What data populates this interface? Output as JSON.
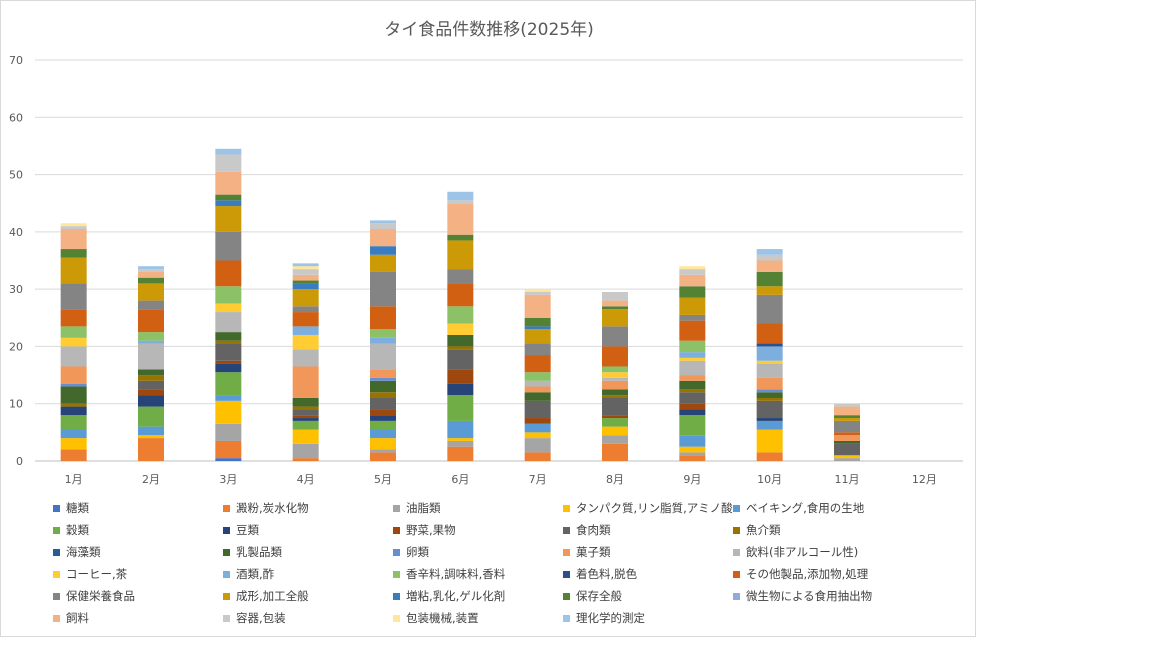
{
  "chart_data": {
    "type": "bar",
    "stacked": true,
    "title": "タイ食品件数推移(2025年)",
    "xlabel": "",
    "ylabel": "",
    "ylim": [
      0,
      70
    ],
    "yticks": [
      0,
      10,
      20,
      30,
      40,
      50,
      60,
      70
    ],
    "grid": true,
    "legend_position": "bottom",
    "categories": [
      "1月",
      "2月",
      "3月",
      "4月",
      "5月",
      "6月",
      "7月",
      "8月",
      "9月",
      "10月",
      "11月",
      "12月"
    ],
    "series": [
      {
        "name": "糖類",
        "color": "#4472c4",
        "values": [
          0,
          0,
          0.5,
          0,
          0,
          0,
          0,
          0,
          0,
          0,
          0,
          0
        ]
      },
      {
        "name": "澱粉,炭水化物",
        "color": "#ed7d31",
        "values": [
          2,
          4,
          3,
          0.5,
          1.5,
          2.5,
          1.5,
          3,
          1,
          1.5,
          0,
          0
        ]
      },
      {
        "name": "油脂類",
        "color": "#a5a5a5",
        "values": [
          0,
          0,
          3,
          2.5,
          0.5,
          1,
          2.5,
          1.5,
          0.5,
          0,
          0.5,
          0
        ]
      },
      {
        "name": "タンパク質,リン脂質,アミノ酸",
        "color": "#ffc000",
        "values": [
          2,
          0.5,
          4,
          2.5,
          2,
          0.5,
          1,
          1.5,
          1,
          4,
          0.5,
          0
        ]
      },
      {
        "name": "ベイキング,食用の生地",
        "color": "#5b9bd5",
        "values": [
          1.5,
          1.5,
          1,
          0,
          1.5,
          3,
          1.5,
          0,
          2,
          1.5,
          0,
          0
        ]
      },
      {
        "name": "穀類",
        "color": "#70ad47",
        "values": [
          2.5,
          3.5,
          4,
          1.5,
          1.5,
          4.5,
          0,
          1.5,
          3.5,
          0,
          0,
          0
        ]
      },
      {
        "name": "豆類",
        "color": "#264478",
        "values": [
          1.5,
          2,
          1.5,
          0.5,
          1,
          2,
          0,
          0,
          1,
          0.5,
          0,
          0
        ]
      },
      {
        "name": "野菜,果物",
        "color": "#9e480e",
        "values": [
          0,
          1,
          0.5,
          0.5,
          1,
          2.5,
          1,
          0.5,
          1,
          0,
          0,
          0
        ]
      },
      {
        "name": "食肉類",
        "color": "#636363",
        "values": [
          0,
          1.5,
          3,
          1,
          2,
          3.5,
          3,
          3,
          2,
          3,
          2,
          0
        ]
      },
      {
        "name": "魚介類",
        "color": "#997300",
        "values": [
          0.5,
          1,
          0.5,
          0.5,
          1,
          0.5,
          0,
          0.5,
          0.5,
          0.5,
          0,
          0
        ]
      },
      {
        "name": "海藻類",
        "color": "#255e91",
        "values": [
          0,
          0,
          0,
          0,
          0,
          0,
          0,
          0,
          0,
          0,
          0,
          0
        ]
      },
      {
        "name": "乳製品類",
        "color": "#43682b",
        "values": [
          3,
          1,
          1.5,
          1.5,
          2,
          2,
          1.5,
          1,
          1.5,
          1,
          0.5,
          0
        ]
      },
      {
        "name": "卵類",
        "color": "#698ed0",
        "values": [
          0.5,
          0,
          0,
          0,
          0.5,
          0,
          0,
          0,
          0,
          0.5,
          0,
          0
        ]
      },
      {
        "name": "菓子類",
        "color": "#f1975a",
        "values": [
          3,
          0,
          0,
          5.5,
          1.5,
          0,
          1,
          1.5,
          1,
          2,
          1,
          0
        ]
      },
      {
        "name": "飲料(非アルコール性)",
        "color": "#b7b7b7",
        "values": [
          3.5,
          4.5,
          3.5,
          3,
          4.5,
          0,
          1,
          0.5,
          2.5,
          2.5,
          0,
          0
        ]
      },
      {
        "name": "コーヒー,茶",
        "color": "#ffcd33",
        "values": [
          1.5,
          0,
          1.5,
          2.5,
          0,
          2,
          0,
          1,
          0.5,
          0.5,
          0,
          0
        ]
      },
      {
        "name": "酒類,酢",
        "color": "#7cafdd",
        "values": [
          0,
          0.5,
          0,
          1.5,
          1,
          0,
          0,
          0,
          1,
          2.5,
          0,
          0
        ]
      },
      {
        "name": "香辛料,調味料,香料",
        "color": "#8cc168",
        "values": [
          2,
          1.5,
          3,
          0,
          1.5,
          3,
          1.5,
          1,
          2,
          0,
          0,
          0
        ]
      },
      {
        "name": "着色料,脱色",
        "color": "#2e4e8f",
        "values": [
          0,
          0,
          0,
          0,
          0,
          0,
          0,
          0,
          0,
          0.5,
          0,
          0
        ]
      },
      {
        "name": "その他製品,添加物,処理",
        "color": "#d26012",
        "values": [
          3,
          4,
          4.5,
          2.5,
          4,
          4,
          3,
          3.5,
          3.5,
          3.5,
          0.5,
          0
        ]
      },
      {
        "name": "保健栄養食品",
        "color": "#848484",
        "values": [
          4.5,
          1.5,
          5,
          1,
          6,
          2.5,
          2,
          3.5,
          1,
          5,
          2,
          0
        ]
      },
      {
        "name": "成形,加工全般",
        "color": "#cc9a06",
        "values": [
          4.5,
          3,
          4.5,
          3,
          3,
          5,
          2.5,
          3,
          3,
          1.5,
          0.5,
          0
        ]
      },
      {
        "name": "増粘,乳化,ゲル化剤",
        "color": "#3a7cc0",
        "values": [
          0,
          0,
          1,
          1,
          1.5,
          0,
          0.5,
          0,
          0,
          0,
          0,
          0
        ]
      },
      {
        "name": "保存全般",
        "color": "#548235",
        "values": [
          1.5,
          1,
          1,
          0.5,
          0,
          1,
          1.5,
          0.5,
          2,
          2.5,
          0.5,
          0
        ]
      },
      {
        "name": "微生物による食用抽出物",
        "color": "#8faadc",
        "values": [
          0,
          0,
          0,
          0,
          0,
          0,
          0,
          0,
          0,
          0,
          0,
          0
        ]
      },
      {
        "name": "飼料",
        "color": "#f4b183",
        "values": [
          3.5,
          1,
          4,
          1,
          3,
          5.5,
          4,
          1,
          2,
          2,
          1.5,
          0
        ]
      },
      {
        "name": "容器,包装",
        "color": "#c9c9c9",
        "values": [
          0.5,
          0.5,
          3,
          1,
          1,
          0.5,
          0.5,
          1.5,
          1,
          1,
          0.5,
          0
        ]
      },
      {
        "name": "包装機械,装置",
        "color": "#ffe699",
        "values": [
          0.5,
          0,
          0,
          0.5,
          0,
          0,
          0.5,
          0,
          0.5,
          0,
          0,
          0
        ]
      },
      {
        "name": "理化学的測定",
        "color": "#9dc3e6",
        "values": [
          0,
          0.5,
          1,
          0.5,
          0.5,
          1.5,
          0,
          0,
          0,
          1,
          0,
          0
        ]
      }
    ]
  }
}
